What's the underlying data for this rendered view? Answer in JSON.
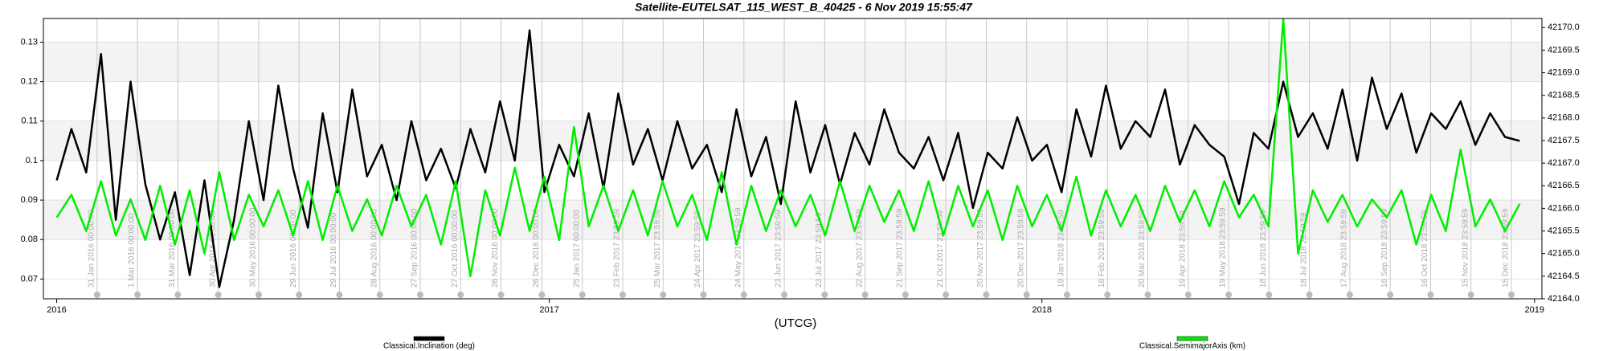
{
  "chart_data": {
    "type": "line",
    "title": "Satellite-EUTELSAT_115_WEST_B_40425 -  6 Nov 2019 15:55:47",
    "xlabel": "(UTCG)",
    "xlim": [
      2015.973,
      2019.015
    ],
    "xticks": [
      2016,
      2017,
      2018,
      2019
    ],
    "ylim": [
      0.065,
      0.136
    ],
    "yticks": [
      0.07,
      0.08,
      0.09,
      0.1,
      0.11,
      0.12,
      0.13
    ],
    "y2lim": [
      42164.0,
      42170.2
    ],
    "y2ticks": [
      {
        "value": 42164.0,
        "label": "42164.0"
      },
      {
        "value": 42164.5,
        "label": "42164.5"
      },
      {
        "value": 42165.0,
        "label": "42165.0"
      },
      {
        "value": 42165.5,
        "label": "42165.5"
      },
      {
        "value": 42166.0,
        "label": "42166.0"
      },
      {
        "value": 42166.5,
        "label": "42166.5"
      },
      {
        "value": 42167.0,
        "label": "42167.0"
      },
      {
        "value": 42167.5,
        "label": "42167.5"
      },
      {
        "value": 42168.0,
        "label": "42168.0"
      },
      {
        "value": 42168.5,
        "label": "42168.5"
      },
      {
        "value": 42169.0,
        "label": "42169.0"
      },
      {
        "value": 42169.5,
        "label": "42169.5"
      },
      {
        "value": 42170.0,
        "label": "42170.0"
      }
    ],
    "grid": true,
    "event_lines": [
      {
        "value": 2016.082,
        "label": "31 Jan 2016 00:00:00"
      },
      {
        "value": 2016.164,
        "label": "1 Mar 2016 00:00:00"
      },
      {
        "value": 2016.246,
        "label": "31 Mar 2016 00:00:00"
      },
      {
        "value": 2016.328,
        "label": "30 Apr 2016 00:00:00"
      },
      {
        "value": 2016.41,
        "label": "30 May 2016 00:00:00"
      },
      {
        "value": 2016.492,
        "label": "29 Jun 2016 00:00:00"
      },
      {
        "value": 2016.574,
        "label": "29 Jul 2016 00:00:00"
      },
      {
        "value": 2016.656,
        "label": "28 Aug 2016 00:00:00"
      },
      {
        "value": 2016.738,
        "label": "27 Sep 2016 00:00:00"
      },
      {
        "value": 2016.82,
        "label": "27 Oct 2016 00:00:00"
      },
      {
        "value": 2016.902,
        "label": "26 Nov 2016 00:00:00"
      },
      {
        "value": 2016.985,
        "label": "26 Dec 2016 00:00:00"
      },
      {
        "value": 2017.067,
        "label": "25 Jan 2017 00:00:00"
      },
      {
        "value": 2017.149,
        "label": "23 Feb 2017 23:59:59"
      },
      {
        "value": 2017.231,
        "label": "25 Mar 2017 23:59:59"
      },
      {
        "value": 2017.313,
        "label": "24 Apr 2017 23:59:59"
      },
      {
        "value": 2017.395,
        "label": "24 May 2017 23:59:59"
      },
      {
        "value": 2017.477,
        "label": "23 Jun 2017 23:59:59"
      },
      {
        "value": 2017.559,
        "label": "23 Jul 2017 23:59:59"
      },
      {
        "value": 2017.641,
        "label": "22 Aug 2017 23:59:59"
      },
      {
        "value": 2017.723,
        "label": "21 Sep 2017 23:59:59"
      },
      {
        "value": 2017.805,
        "label": "21 Oct 2017 23:59:59"
      },
      {
        "value": 2017.887,
        "label": "20 Nov 2017 23:59:59"
      },
      {
        "value": 2017.969,
        "label": "20 Dec 2017 23:59:59"
      },
      {
        "value": 2018.051,
        "label": "19 Jan 2018 23:59:59"
      },
      {
        "value": 2018.133,
        "label": "18 Feb 2018 23:59:59"
      },
      {
        "value": 2018.215,
        "label": "20 Mar 2018 23:59:59"
      },
      {
        "value": 2018.297,
        "label": "19 Apr 2018 23:59:59"
      },
      {
        "value": 2018.379,
        "label": "19 May 2018 23:59:59"
      },
      {
        "value": 2018.461,
        "label": "18 Jun 2018 23:59:59"
      },
      {
        "value": 2018.543,
        "label": "18 Jul 2018 23:59:59"
      },
      {
        "value": 2018.625,
        "label": "17 Aug 2018 23:59:59"
      },
      {
        "value": 2018.707,
        "label": "16 Sep 2018 23:59:59"
      },
      {
        "value": 2018.789,
        "label": "16 Oct 2018 23:59:59"
      },
      {
        "value": 2018.871,
        "label": "15 Nov 2018 23:59:59"
      },
      {
        "value": 2018.953,
        "label": "15 Dec 2018 23:59:59"
      }
    ],
    "x": [
      2016.0,
      2016.03,
      2016.06,
      2016.09,
      2016.12,
      2016.15,
      2016.18,
      2016.21,
      2016.24,
      2016.27,
      2016.3,
      2016.33,
      2016.36,
      2016.39,
      2016.42,
      2016.45,
      2016.48,
      2016.51,
      2016.54,
      2016.57,
      2016.6,
      2016.63,
      2016.66,
      2016.69,
      2016.72,
      2016.75,
      2016.78,
      2016.81,
      2016.84,
      2016.87,
      2016.9,
      2016.93,
      2016.96,
      2016.99,
      2017.02,
      2017.05,
      2017.08,
      2017.11,
      2017.14,
      2017.17,
      2017.2,
      2017.23,
      2017.26,
      2017.29,
      2017.32,
      2017.35,
      2017.38,
      2017.41,
      2017.44,
      2017.47,
      2017.5,
      2017.53,
      2017.56,
      2017.59,
      2017.62,
      2017.65,
      2017.68,
      2017.71,
      2017.74,
      2017.77,
      2017.8,
      2017.83,
      2017.86,
      2017.89,
      2017.92,
      2017.95,
      2017.98,
      2018.01,
      2018.04,
      2018.07,
      2018.1,
      2018.13,
      2018.16,
      2018.19,
      2018.22,
      2018.25,
      2018.28,
      2018.31,
      2018.34,
      2018.37,
      2018.4,
      2018.43,
      2018.46,
      2018.49,
      2018.52,
      2018.55,
      2018.58,
      2018.61,
      2018.64,
      2018.67,
      2018.7,
      2018.73,
      2018.76,
      2018.79,
      2018.82,
      2018.85,
      2018.88,
      2018.91,
      2018.94,
      2018.97
    ],
    "series": [
      {
        "name": "Classical.Inclination (deg)",
        "color": "#000000",
        "values": [
          0.095,
          0.108,
          0.097,
          0.127,
          0.085,
          0.12,
          0.094,
          0.08,
          0.092,
          0.071,
          0.095,
          0.068,
          0.085,
          0.11,
          0.09,
          0.119,
          0.098,
          0.083,
          0.112,
          0.092,
          0.118,
          0.096,
          0.104,
          0.09,
          0.11,
          0.095,
          0.103,
          0.093,
          0.108,
          0.097,
          0.115,
          0.1,
          0.133,
          0.092,
          0.104,
          0.096,
          0.112,
          0.093,
          0.117,
          0.099,
          0.108,
          0.095,
          0.11,
          0.098,
          0.104,
          0.092,
          0.113,
          0.096,
          0.106,
          0.089,
          0.115,
          0.097,
          0.109,
          0.094,
          0.107,
          0.099,
          0.113,
          0.102,
          0.098,
          0.106,
          0.095,
          0.107,
          0.088,
          0.102,
          0.098,
          0.111,
          0.1,
          0.104,
          0.092,
          0.113,
          0.101,
          0.119,
          0.103,
          0.11,
          0.106,
          0.118,
          0.099,
          0.109,
          0.104,
          0.101,
          0.089,
          0.107,
          0.103,
          0.12,
          0.106,
          0.112,
          0.103,
          0.118,
          0.1,
          0.121,
          0.108,
          0.117,
          0.102,
          0.112,
          0.108,
          0.115,
          0.104,
          0.112,
          0.106,
          0.105
        ]
      },
      {
        "name": "Classical.SemimajorAxis (km)",
        "color": "#00ee00",
        "axis": "y2",
        "values": [
          42165.8,
          42166.3,
          42165.5,
          42166.6,
          42165.4,
          42166.2,
          42165.3,
          42166.5,
          42165.2,
          42166.4,
          42165.0,
          42166.8,
          42165.3,
          42166.3,
          42165.6,
          42166.4,
          42165.4,
          42166.6,
          42165.3,
          42166.5,
          42165.5,
          42166.2,
          42165.4,
          42166.5,
          42165.6,
          42166.3,
          42165.2,
          42166.6,
          42164.5,
          42166.4,
          42165.4,
          42166.9,
          42165.5,
          42166.7,
          42165.3,
          42167.8,
          42165.6,
          42166.5,
          42165.5,
          42166.4,
          42165.4,
          42166.6,
          42165.6,
          42166.3,
          42165.3,
          42166.8,
          42165.2,
          42166.5,
          42165.5,
          42166.4,
          42165.6,
          42166.3,
          42165.4,
          42166.6,
          42165.5,
          42166.5,
          42165.7,
          42166.4,
          42165.5,
          42166.6,
          42165.4,
          42166.5,
          42165.6,
          42166.4,
          42165.3,
          42166.5,
          42165.6,
          42166.3,
          42165.5,
          42166.7,
          42165.4,
          42166.4,
          42165.6,
          42166.3,
          42165.5,
          42166.5,
          42165.7,
          42166.4,
          42165.6,
          42166.6,
          42165.8,
          42166.3,
          42165.6,
          42170.2,
          42165.0,
          42166.4,
          42165.7,
          42166.3,
          42165.6,
          42166.2,
          42165.8,
          42166.4,
          42165.2,
          42166.3,
          42165.5,
          42167.3,
          42165.6,
          42166.2,
          42165.5,
          42166.1
        ]
      }
    ]
  }
}
